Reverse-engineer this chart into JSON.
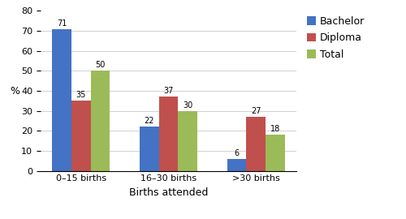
{
  "categories": [
    "0–15 births",
    "16–30 births",
    ">30 births"
  ],
  "series": {
    "Bachelor": [
      71,
      22,
      6
    ],
    "Diploma": [
      35,
      37,
      27
    ],
    "Total": [
      50,
      30,
      18
    ]
  },
  "colors": {
    "Bachelor": "#4472C4",
    "Diploma": "#C0504D",
    "Total": "#9BBB59"
  },
  "ylabel": "%",
  "xlabel": "Births attended",
  "ylim": [
    0,
    80
  ],
  "yticks": [
    0,
    10,
    20,
    30,
    40,
    50,
    60,
    70,
    80
  ],
  "bar_width": 0.22,
  "label_fontsize": 8,
  "axis_fontsize": 9,
  "legend_fontsize": 9
}
